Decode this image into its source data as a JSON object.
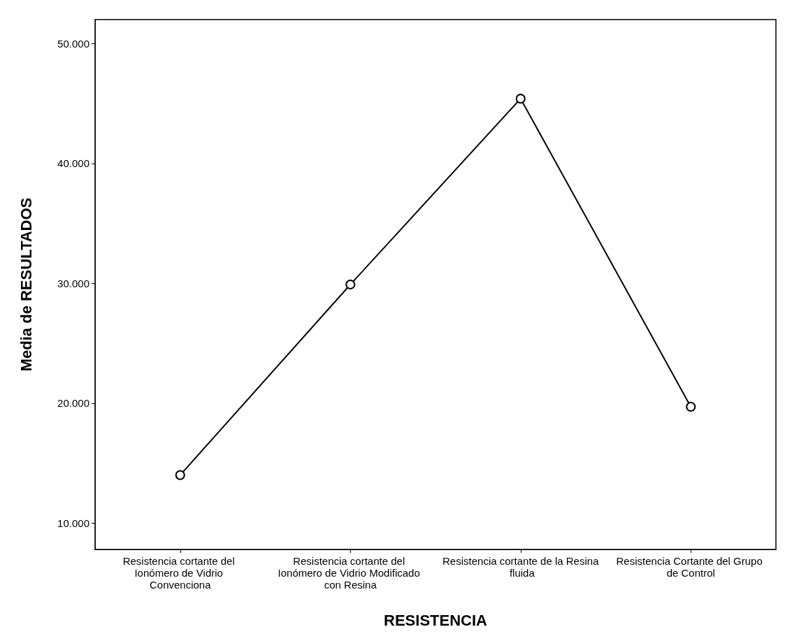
{
  "chart_data": {
    "type": "line",
    "xlabel": "RESISTENCIA",
    "ylabel": "Media de RESULTADOS",
    "categories": [
      "Resistencia cortante del Ionómero de Vidrio Convenciona",
      "Resistencia cortante del Ionómero de Vidrio Modificado con Resina",
      "Resistencia cortante de la Resina fluida",
      "Resistencia Cortante del Grupo de Control"
    ],
    "series": [
      {
        "color": "#000000",
        "values": [
          14.0,
          29.9,
          45.4,
          19.7
        ]
      }
    ],
    "ylim": [
      7.8,
      52
    ],
    "yticks": [
      {
        "value": 10,
        "label": "10.000"
      },
      {
        "value": 20,
        "label": "20.000"
      },
      {
        "value": 30,
        "label": "30.000"
      },
      {
        "value": 40,
        "label": "40.000"
      },
      {
        "value": 50,
        "label": "50.000"
      }
    ],
    "grid": false,
    "marker": "circle",
    "line_style": "solid"
  }
}
